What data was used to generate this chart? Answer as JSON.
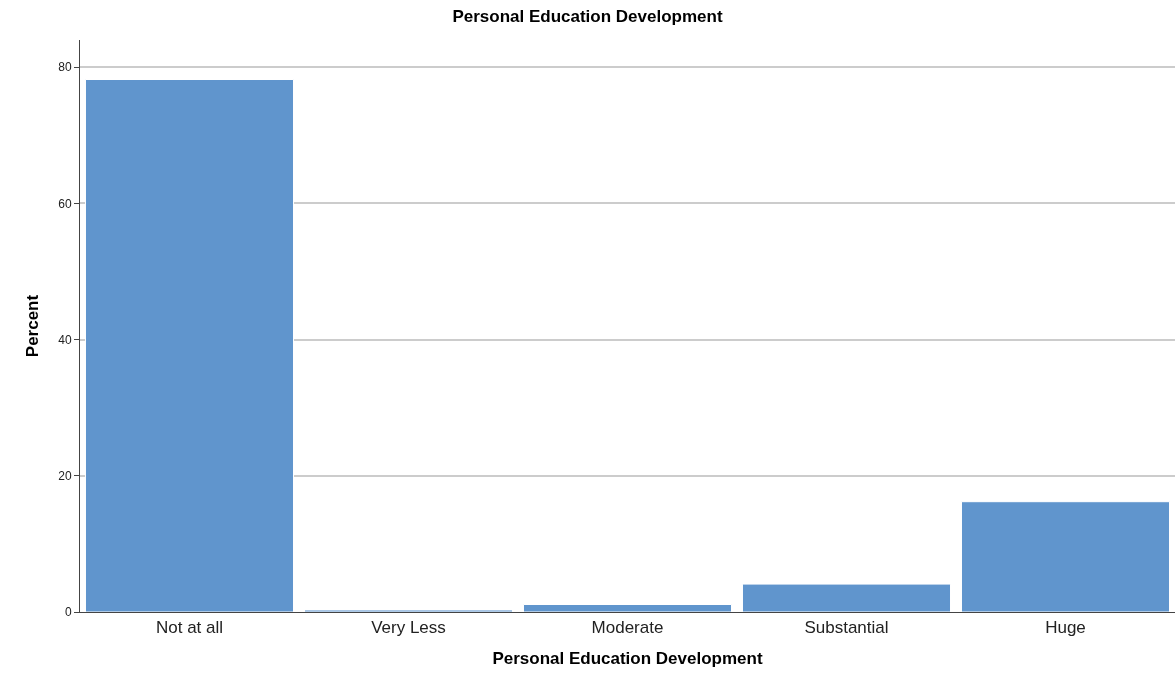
{
  "chart_data": {
    "type": "bar",
    "title": "Personal Education Development",
    "xlabel": "Personal Education Development",
    "ylabel": "Percent",
    "categories": [
      "Not at all",
      "Very Less",
      "Moderate",
      "Substantial",
      "Huge"
    ],
    "values": [
      78.2,
      0.3,
      1.1,
      4.1,
      16.2
    ],
    "color": "#6095cd",
    "ylim": [
      0,
      84
    ],
    "yticks": [
      0,
      20,
      40,
      60,
      80
    ],
    "grid": "y",
    "legend": false
  }
}
